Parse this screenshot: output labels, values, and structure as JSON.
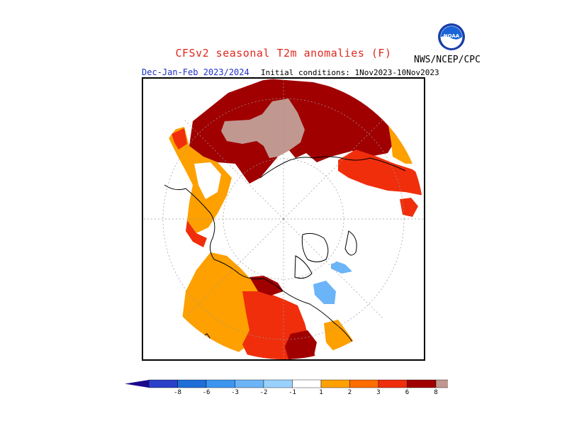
{
  "header": {
    "title": "CFSv2 seasonal T2m anomalies (F)",
    "season": "Dec-Jan-Feb 2023/2024",
    "initial_conditions": "Initial conditions: 1Nov2023-10Nov2023",
    "organization": "NWS/NCEP/CPC",
    "logo": "noaa-logo"
  },
  "map": {
    "projection": "north-polar-stereographic",
    "land_color": "#ffffff",
    "border_color": "#000000",
    "gridline_color": "#9a9a9a"
  },
  "colorbar": {
    "unit": "F",
    "colors": [
      "#1c0a8c",
      "#2a40c8",
      "#1e6ed8",
      "#3c96f0",
      "#6cb4f8",
      "#9ad0fc",
      "#ffffff",
      "#fda000",
      "#ff6c00",
      "#f02e0c",
      "#a00000",
      "#c09890",
      "#7a5048"
    ],
    "tick_labels": [
      "-8",
      "-6",
      "-3",
      "-2",
      "-1",
      "1",
      "2",
      "3",
      "6",
      "8"
    ]
  },
  "legend_colors": {
    "warm_1": "#fda000",
    "warm_2": "#ff6c00",
    "warm_3": "#f02e0c",
    "warm_6": "#a00000",
    "warm_8": "#c09890",
    "cold_1": "#6cb4f8"
  }
}
